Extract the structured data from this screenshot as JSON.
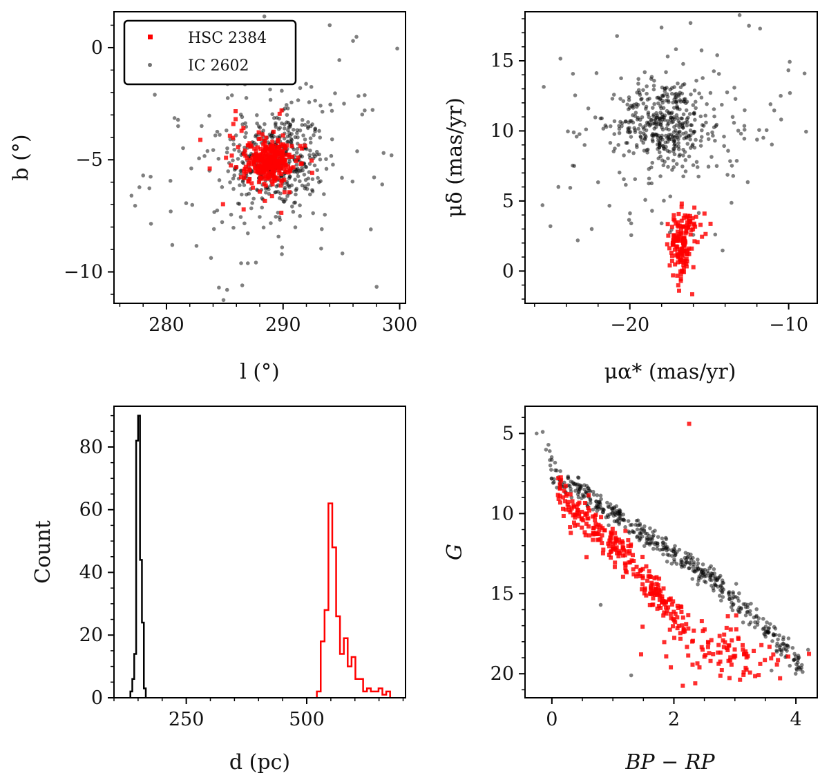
{
  "figure": {
    "legend": {
      "entries": [
        {
          "label": "HSC 2384",
          "color": "#ff0000",
          "marker": "square"
        },
        {
          "label": "IC 2602",
          "color": "#000000",
          "marker": "circle"
        }
      ]
    }
  },
  "chart_data": [
    {
      "type": "scatter",
      "id": "lb",
      "xlabel": "l (°)",
      "ylabel": "b (°)",
      "xlim": [
        275.5,
        300.5
      ],
      "ylim": [
        -11.4,
        1.6
      ],
      "xticks": [
        280,
        290,
        300
      ],
      "yticks": [
        0,
        -5,
        -10
      ],
      "series": [
        {
          "name": "IC 2602",
          "color": "#000000",
          "clusters": [
            {
              "n": 380,
              "cx": 289.5,
              "cy": -5.0,
              "sx": 2.0,
              "sy": 1.1
            },
            {
              "n": 150,
              "cx": 289.0,
              "cy": -5.2,
              "sx": 5.0,
              "sy": 2.6
            }
          ],
          "outliers": [
            [
              277.0,
              -6.6
            ],
            [
              278.0,
              -5.7
            ],
            [
              279.0,
              -2.1
            ],
            [
              280.5,
              -8.8
            ],
            [
              284.5,
              -10.7
            ],
            [
              286.5,
              -10.6
            ],
            [
              294.0,
              1.0
            ],
            [
              296.0,
              0.3
            ],
            [
              298.5,
              -6.1
            ],
            [
              299.3,
              -4.8
            ],
            [
              285.2,
              -10.8
            ],
            [
              297.0,
              -2.8
            ],
            [
              281.0,
              -3.5
            ]
          ]
        },
        {
          "name": "HSC 2384",
          "color": "#ff0000",
          "clusters": [
            {
              "n": 240,
              "cx": 288.9,
              "cy": -5.1,
              "sx": 0.9,
              "sy": 0.45
            },
            {
              "n": 85,
              "cx": 288.0,
              "cy": -5.0,
              "sx": 2.0,
              "sy": 0.9
            }
          ],
          "outliers": []
        }
      ]
    },
    {
      "type": "scatter",
      "id": "pm",
      "xlabel": "μα* (mas/yr)",
      "ylabel": "μδ (mas/yr)",
      "xlim": [
        -26.6,
        -8.2
      ],
      "ylim": [
        -2.3,
        18.5
      ],
      "xticks": [
        -20,
        -10
      ],
      "yticks": [
        0,
        5,
        10,
        15
      ],
      "series": [
        {
          "name": "IC 2602",
          "color": "#000000",
          "clusters": [
            {
              "n": 330,
              "cx": -17.8,
              "cy": 10.6,
              "sx": 1.4,
              "sy": 1.5
            },
            {
              "n": 160,
              "cx": -17.0,
              "cy": 10.0,
              "sx": 3.6,
              "sy": 3.2
            }
          ],
          "outliers": [
            [
              -25.5,
              4.7
            ],
            [
              -25.0,
              3.2
            ],
            [
              -24.5,
              6.0
            ],
            [
              -22.4,
              3.0
            ],
            [
              -12.5,
              17.5
            ],
            [
              -11.8,
              17.3
            ],
            [
              -9.0,
              14.1
            ],
            [
              -10.5,
              12.5
            ],
            [
              -14.5,
              15.4
            ],
            [
              -23.5,
              7.5
            ],
            [
              -13.0,
              9.8
            ]
          ]
        },
        {
          "name": "HSC 2384",
          "color": "#ff0000",
          "clusters": [
            {
              "n": 130,
              "cx": -16.8,
              "cy": 1.8,
              "sx": 0.35,
              "sy": 1.2
            },
            {
              "n": 30,
              "cx": -16.3,
              "cy": 3.2,
              "sx": 0.6,
              "sy": 0.5
            }
          ],
          "outliers": [
            [
              -15.3,
              4.1
            ],
            [
              -16.9,
              -1.4
            ]
          ]
        }
      ]
    },
    {
      "type": "histogram",
      "id": "dist",
      "xlabel": "d (pc)",
      "ylabel": "Count",
      "xlim": [
        100,
        705
      ],
      "ylim": [
        0,
        93
      ],
      "xticks": [
        250,
        500
      ],
      "yticks": [
        0,
        20,
        40,
        60,
        80
      ],
      "series": [
        {
          "name": "IC 2602",
          "color": "#000000",
          "edges": [
            134,
            138,
            142,
            146,
            150,
            154,
            158,
            162,
            166
          ],
          "counts": [
            2,
            6,
            14,
            82,
            90,
            44,
            24,
            3
          ]
        },
        {
          "name": "HSC 2384",
          "color": "#ff0000",
          "edges": [
            521,
            529,
            537,
            545,
            553,
            561,
            569,
            577,
            585,
            593,
            601,
            609,
            617,
            625,
            633,
            641,
            649,
            657,
            665,
            673
          ],
          "counts": [
            2,
            18,
            28,
            62,
            48,
            26,
            14,
            19,
            10,
            13,
            6,
            6,
            2,
            3,
            2,
            2,
            3,
            1,
            2
          ]
        }
      ]
    },
    {
      "type": "scatter",
      "id": "cmd",
      "xlabel": "BP − RP",
      "ylabel": "G",
      "xlim": [
        -0.44,
        4.35
      ],
      "ylim": [
        21.5,
        3.3
      ],
      "xticks": [
        0,
        2,
        4
      ],
      "yticks": [
        5,
        10,
        15,
        20
      ],
      "series": [
        {
          "name": "IC 2602",
          "color": "#000000",
          "curve": {
            "n": 470,
            "from": -0.1,
            "to": 4.1,
            "start": [
              -0.2,
              4.8
            ],
            "knee": [
              0.0,
              7.4
            ],
            "slope": 2.55,
            "ax": 2.7,
            "bend": 0.55,
            "spread": 0.35
          },
          "outliers": [
            [
              -0.15,
              4.9
            ],
            [
              -0.25,
              5.0
            ],
            [
              0.8,
              15.7
            ],
            [
              1.3,
              20.1
            ],
            [
              4.2,
              18.5
            ],
            [
              3.9,
              19.5
            ],
            [
              3.6,
              19.8
            ]
          ]
        },
        {
          "name": "HSC 2384",
          "color": "#ff0000",
          "curve": {
            "n": 270,
            "from": 0.1,
            "to": 2.2,
            "start": [
              0.1,
              8.0
            ],
            "knee": [
              0.3,
              9.8
            ],
            "slope": 3.1,
            "ax": 1.0,
            "bend": 0.5,
            "spread": 0.6
          },
          "cloud": {
            "n": 90,
            "cx": 2.85,
            "cy": 18.6,
            "sx": 0.45,
            "sy": 0.9
          },
          "outliers": [
            [
              2.25,
              4.4
            ],
            [
              1.95,
              19.6
            ],
            [
              2.35,
              20.6
            ]
          ]
        }
      ]
    }
  ]
}
